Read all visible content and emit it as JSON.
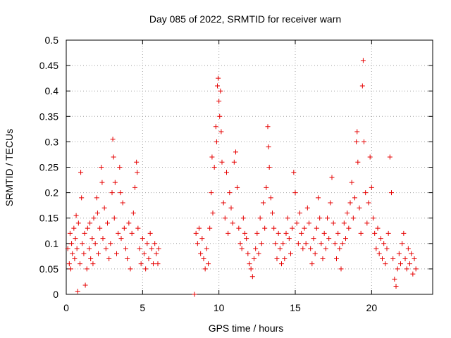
{
  "chart_data": {
    "type": "scatter",
    "title": "Day 085 of 2022, SRMTID for receiver warn",
    "xlabel": "GPS time / hours",
    "ylabel": "SRMTID / TECUs",
    "xlim": [
      0,
      24
    ],
    "ylim": [
      0,
      0.5
    ],
    "xticks": [
      0,
      5,
      10,
      15,
      20
    ],
    "xtick_labels": [
      "0",
      "5",
      "10",
      "15",
      "20"
    ],
    "yticks": [
      0,
      0.05,
      0.1,
      0.15,
      0.2,
      0.25,
      0.3,
      0.35,
      0.4,
      0.45,
      0.5
    ],
    "ytick_labels": [
      "0",
      "0.05",
      "0.1",
      "0.15",
      "0.2",
      "0.25",
      "0.3",
      "0.35",
      "0.4",
      "0.45",
      "0.5"
    ],
    "grid": true,
    "marker": "plus",
    "color": "#e60000",
    "series": [
      {
        "name": "SRMTID",
        "points": [
          [
            0.1,
            0.09
          ],
          [
            0.2,
            0.06
          ],
          [
            0.25,
            0.12
          ],
          [
            0.3,
            0.05
          ],
          [
            0.35,
            0.1
          ],
          [
            0.4,
            0.08
          ],
          [
            0.5,
            0.13
          ],
          [
            0.55,
            0.07
          ],
          [
            0.6,
            0.11
          ],
          [
            0.65,
            0.155
          ],
          [
            0.7,
            0.09
          ],
          [
            0.75,
            0.006
          ],
          [
            0.8,
            0.14
          ],
          [
            0.9,
            0.06
          ],
          [
            0.95,
            0.24
          ],
          [
            1.0,
            0.19
          ],
          [
            1.05,
            0.1
          ],
          [
            1.15,
            0.08
          ],
          [
            1.2,
            0.12
          ],
          [
            1.25,
            0.018
          ],
          [
            1.35,
            0.05
          ],
          [
            1.4,
            0.13
          ],
          [
            1.5,
            0.09
          ],
          [
            1.55,
            0.14
          ],
          [
            1.6,
            0.07
          ],
          [
            1.7,
            0.11
          ],
          [
            1.75,
            0.06
          ],
          [
            1.8,
            0.15
          ],
          [
            1.9,
            0.1
          ],
          [
            2.0,
            0.19
          ],
          [
            2.05,
            0.16
          ],
          [
            2.1,
            0.08
          ],
          [
            2.2,
            0.13
          ],
          [
            2.3,
            0.25
          ],
          [
            2.35,
            0.22
          ],
          [
            2.4,
            0.11
          ],
          [
            2.5,
            0.17
          ],
          [
            2.6,
            0.09
          ],
          [
            2.7,
            0.14
          ],
          [
            2.8,
            0.07
          ],
          [
            2.9,
            0.1
          ],
          [
            3.0,
            0.2
          ],
          [
            3.05,
            0.305
          ],
          [
            3.1,
            0.27
          ],
          [
            3.15,
            0.15
          ],
          [
            3.2,
            0.22
          ],
          [
            3.3,
            0.08
          ],
          [
            3.4,
            0.12
          ],
          [
            3.5,
            0.25
          ],
          [
            3.55,
            0.2
          ],
          [
            3.6,
            0.11
          ],
          [
            3.7,
            0.18
          ],
          [
            3.8,
            0.13
          ],
          [
            3.9,
            0.09
          ],
          [
            4.0,
            0.07
          ],
          [
            4.1,
            0.14
          ],
          [
            4.2,
            0.05
          ],
          [
            4.3,
            0.12
          ],
          [
            4.4,
            0.16
          ],
          [
            4.5,
            0.21
          ],
          [
            4.6,
            0.26
          ],
          [
            4.65,
            0.24
          ],
          [
            4.7,
            0.13
          ],
          [
            4.8,
            0.09
          ],
          [
            4.9,
            0.06
          ],
          [
            5.0,
            0.11
          ],
          [
            5.1,
            0.08
          ],
          [
            5.2,
            0.05
          ],
          [
            5.3,
            0.1
          ],
          [
            5.4,
            0.07
          ],
          [
            5.5,
            0.12
          ],
          [
            5.6,
            0.09
          ],
          [
            5.7,
            0.06
          ],
          [
            5.8,
            0.1
          ],
          [
            5.9,
            0.08
          ],
          [
            6.0,
            0.06
          ],
          [
            6.05,
            0.09
          ],
          [
            8.4,
            0.0
          ],
          [
            8.5,
            0.12
          ],
          [
            8.6,
            0.1
          ],
          [
            8.7,
            0.13
          ],
          [
            8.8,
            0.08
          ],
          [
            8.9,
            0.11
          ],
          [
            9.0,
            0.07
          ],
          [
            9.1,
            0.05
          ],
          [
            9.2,
            0.09
          ],
          [
            9.3,
            0.06
          ],
          [
            9.4,
            0.13
          ],
          [
            9.5,
            0.2
          ],
          [
            9.55,
            0.27
          ],
          [
            9.6,
            0.16
          ],
          [
            9.7,
            0.25
          ],
          [
            9.8,
            0.33
          ],
          [
            9.85,
            0.3
          ],
          [
            9.9,
            0.41
          ],
          [
            9.95,
            0.425
          ],
          [
            10.0,
            0.38
          ],
          [
            10.05,
            0.35
          ],
          [
            10.1,
            0.4
          ],
          [
            10.15,
            0.32
          ],
          [
            10.2,
            0.26
          ],
          [
            10.3,
            0.18
          ],
          [
            10.4,
            0.15
          ],
          [
            10.5,
            0.24
          ],
          [
            10.6,
            0.12
          ],
          [
            10.7,
            0.2
          ],
          [
            10.8,
            0.17
          ],
          [
            10.9,
            0.14
          ],
          [
            11.0,
            0.26
          ],
          [
            11.1,
            0.28
          ],
          [
            11.2,
            0.21
          ],
          [
            11.3,
            0.13
          ],
          [
            11.4,
            0.1
          ],
          [
            11.5,
            0.09
          ],
          [
            11.6,
            0.15
          ],
          [
            11.7,
            0.12
          ],
          [
            11.8,
            0.11
          ],
          [
            11.9,
            0.08
          ],
          [
            12.0,
            0.06
          ],
          [
            12.1,
            0.05
          ],
          [
            12.2,
            0.035
          ],
          [
            12.3,
            0.07
          ],
          [
            12.4,
            0.09
          ],
          [
            12.5,
            0.12
          ],
          [
            12.6,
            0.08
          ],
          [
            12.7,
            0.15
          ],
          [
            12.8,
            0.1
          ],
          [
            12.9,
            0.18
          ],
          [
            13.0,
            0.13
          ],
          [
            13.1,
            0.21
          ],
          [
            13.2,
            0.33
          ],
          [
            13.25,
            0.29
          ],
          [
            13.3,
            0.25
          ],
          [
            13.4,
            0.19
          ],
          [
            13.5,
            0.16
          ],
          [
            13.6,
            0.13
          ],
          [
            13.7,
            0.1
          ],
          [
            13.8,
            0.07
          ],
          [
            13.9,
            0.12
          ],
          [
            14.0,
            0.09
          ],
          [
            14.1,
            0.06
          ],
          [
            14.2,
            0.1
          ],
          [
            14.3,
            0.07
          ],
          [
            14.4,
            0.12
          ],
          [
            14.5,
            0.15
          ],
          [
            14.6,
            0.11
          ],
          [
            14.7,
            0.08
          ],
          [
            14.8,
            0.13
          ],
          [
            14.9,
            0.24
          ],
          [
            15.0,
            0.2
          ],
          [
            15.1,
            0.14
          ],
          [
            15.2,
            0.1
          ],
          [
            15.3,
            0.16
          ],
          [
            15.4,
            0.12
          ],
          [
            15.5,
            0.09
          ],
          [
            15.6,
            0.13
          ],
          [
            15.7,
            0.1
          ],
          [
            15.8,
            0.17
          ],
          [
            15.9,
            0.14
          ],
          [
            16.0,
            0.09
          ],
          [
            16.1,
            0.06
          ],
          [
            16.2,
            0.11
          ],
          [
            16.3,
            0.08
          ],
          [
            16.4,
            0.13
          ],
          [
            16.5,
            0.19
          ],
          [
            16.6,
            0.15
          ],
          [
            16.7,
            0.1
          ],
          [
            16.8,
            0.07
          ],
          [
            16.9,
            0.12
          ],
          [
            17.0,
            0.09
          ],
          [
            17.1,
            0.15
          ],
          [
            17.2,
            0.11
          ],
          [
            17.3,
            0.18
          ],
          [
            17.4,
            0.23
          ],
          [
            17.5,
            0.14
          ],
          [
            17.6,
            0.1
          ],
          [
            17.7,
            0.07
          ],
          [
            17.8,
            0.12
          ],
          [
            17.9,
            0.09
          ],
          [
            18.0,
            0.05
          ],
          [
            18.1,
            0.1
          ],
          [
            18.2,
            0.14
          ],
          [
            18.3,
            0.11
          ],
          [
            18.4,
            0.16
          ],
          [
            18.5,
            0.13
          ],
          [
            18.6,
            0.18
          ],
          [
            18.7,
            0.22
          ],
          [
            18.8,
            0.15
          ],
          [
            18.9,
            0.19
          ],
          [
            19.0,
            0.3
          ],
          [
            19.05,
            0.32
          ],
          [
            19.1,
            0.26
          ],
          [
            19.2,
            0.17
          ],
          [
            19.3,
            0.12
          ],
          [
            19.4,
            0.41
          ],
          [
            19.45,
            0.46
          ],
          [
            19.5,
            0.3
          ],
          [
            19.6,
            0.2
          ],
          [
            19.7,
            0.14
          ],
          [
            19.8,
            0.18
          ],
          [
            19.9,
            0.27
          ],
          [
            20.0,
            0.21
          ],
          [
            20.1,
            0.15
          ],
          [
            20.2,
            0.12
          ],
          [
            20.3,
            0.09
          ],
          [
            20.4,
            0.13
          ],
          [
            20.5,
            0.08
          ],
          [
            20.6,
            0.11
          ],
          [
            20.7,
            0.07
          ],
          [
            20.8,
            0.1
          ],
          [
            20.9,
            0.06
          ],
          [
            21.0,
            0.09
          ],
          [
            21.1,
            0.12
          ],
          [
            21.2,
            0.27
          ],
          [
            21.3,
            0.2
          ],
          [
            21.4,
            0.07
          ],
          [
            21.5,
            0.03
          ],
          [
            21.6,
            0.016
          ],
          [
            21.7,
            0.05
          ],
          [
            21.8,
            0.08
          ],
          [
            21.9,
            0.06
          ],
          [
            22.0,
            0.1
          ],
          [
            22.1,
            0.12
          ],
          [
            22.2,
            0.07
          ],
          [
            22.3,
            0.05
          ],
          [
            22.4,
            0.09
          ],
          [
            22.5,
            0.06
          ],
          [
            22.6,
            0.08
          ],
          [
            22.7,
            0.04
          ],
          [
            22.8,
            0.07
          ],
          [
            22.9,
            0.05
          ]
        ]
      }
    ]
  }
}
